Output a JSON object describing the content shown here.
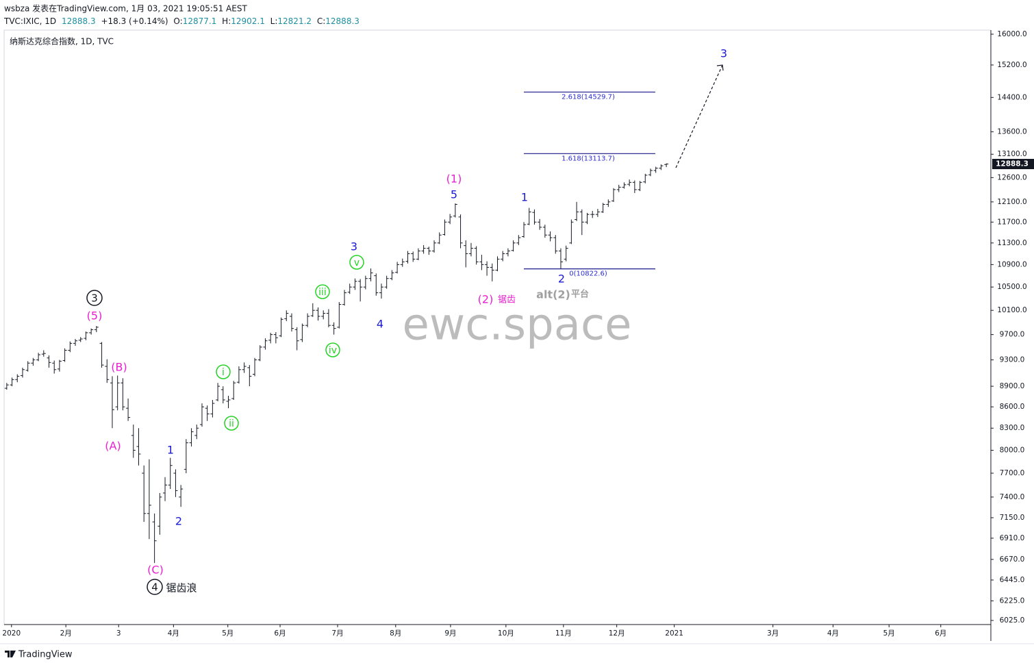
{
  "header": {
    "author_line": "wsbza 发表在TradingView.com, 1月 03, 2021 19:05:51 AEST"
  },
  "legend": {
    "symbol": "TVC:IXIC, 1D",
    "change": "+18.3 (+0.14%)",
    "open_label": "O:",
    "high_label": "H:",
    "low_label": "L:",
    "close_label": "C:"
  },
  "chart_data": {
    "type": "ohlc",
    "title": "纳斯达克综合指数, 1D, TVC",
    "color": "#131722",
    "log": true,
    "grid": false,
    "xlim": [
      -0.5,
      186.5
    ],
    "xticks": [
      {
        "value": 0.9,
        "label": "2020"
      },
      {
        "value": 11.2,
        "label": "2月"
      },
      {
        "value": 21.2,
        "label": "3"
      },
      {
        "value": 31.6,
        "label": "4月"
      },
      {
        "value": 41.9,
        "label": "5月"
      },
      {
        "value": 51.8,
        "label": "6月"
      },
      {
        "value": 62.7,
        "label": "7月"
      },
      {
        "value": 73.7,
        "label": "8月"
      },
      {
        "value": 84.1,
        "label": "9月"
      },
      {
        "value": 94.6,
        "label": "10月"
      },
      {
        "value": 105.5,
        "label": "11月"
      },
      {
        "value": 115.6,
        "label": "12月"
      },
      {
        "value": 126.5,
        "label": "2021"
      },
      {
        "value": 145.2,
        "label": "3月"
      },
      {
        "value": 156.6,
        "label": "4月"
      },
      {
        "value": 167.2,
        "label": "5月"
      },
      {
        "value": 177.0,
        "label": "6月"
      }
    ],
    "ylim": [
      5984,
      16109
    ],
    "yticks": [
      {
        "value": 16000,
        "label": "16000.0"
      },
      {
        "value": 15200,
        "label": "15200.0"
      },
      {
        "value": 14400,
        "label": "14400.0"
      },
      {
        "value": 13600,
        "label": "13600.0"
      },
      {
        "value": 13100,
        "label": "13100.0"
      },
      {
        "value": 12600,
        "label": "12600.0"
      },
      {
        "value": 12100,
        "label": "12100.0"
      },
      {
        "value": 11700,
        "label": "11700.0"
      },
      {
        "value": 11300,
        "label": "11300.0"
      },
      {
        "value": 10900,
        "label": "10900.0"
      },
      {
        "value": 10500,
        "label": "10500.0"
      },
      {
        "value": 10100,
        "label": "10100.0"
      },
      {
        "value": 9700,
        "label": "9700.0"
      },
      {
        "value": 9300,
        "label": "9300.0"
      },
      {
        "value": 8900,
        "label": "8900.0"
      },
      {
        "value": 8600,
        "label": "8600.0"
      },
      {
        "value": 8300,
        "label": "8300.0"
      },
      {
        "value": 8000,
        "label": "8000.0"
      },
      {
        "value": 7700,
        "label": "7700.0"
      },
      {
        "value": 7400,
        "label": "7400.0"
      },
      {
        "value": 7150,
        "label": "7150.0"
      },
      {
        "value": 6910,
        "label": "6910.0"
      },
      {
        "value": 6670,
        "label": "6670.0"
      },
      {
        "value": 6445,
        "label": "6445.0"
      },
      {
        "value": 6225,
        "label": "6225.0"
      },
      {
        "value": 6025,
        "label": "6025.0"
      }
    ],
    "fib_levels": [
      {
        "value": 14529.7,
        "label": "2.618(14529.7)"
      },
      {
        "value": 13113.7,
        "label": "1.618(13113.7)"
      },
      {
        "value": 10822.6,
        "label": "0(10822.6)"
      }
    ],
    "annotations": [
      {
        "text": "(1)",
        "color": "#e91fd0"
      },
      {
        "text": "5",
        "color": "#1a1ad6"
      },
      {
        "text": "1",
        "color": "#1a1ad6"
      },
      {
        "text": "3",
        "color": "#1a1ad6"
      },
      {
        "text": "v",
        "color": "#23d323",
        "circle": true
      },
      {
        "text": "iii",
        "color": "#23d323",
        "circle": true
      },
      {
        "text": "iv",
        "color": "#23d323",
        "circle": true
      },
      {
        "text": "4",
        "color": "#1a1ad6"
      },
      {
        "text": "i",
        "color": "#23d323",
        "circle": true
      },
      {
        "text": "ii",
        "color": "#23d323",
        "circle": true
      },
      {
        "text": "1",
        "color": "#1a1ad6"
      },
      {
        "text": "2",
        "color": "#1a1ad6"
      },
      {
        "text": "(C)",
        "color": "#e91fd0"
      },
      {
        "text": "4",
        "color": "#131722",
        "circle": true
      },
      {
        "text": "锯齿浪",
        "color": "#131722"
      },
      {
        "text": "3",
        "color": "#131722",
        "circle": true
      },
      {
        "text": "(5)",
        "color": "#e91fd0"
      },
      {
        "text": "(B)",
        "color": "#e91fd0"
      },
      {
        "text": "(A)",
        "color": "#e91fd0"
      },
      {
        "text": "(2)",
        "color": "#e91fd0"
      },
      {
        "text": "锯齿",
        "color": "#e91fd0"
      },
      {
        "text": "2",
        "color": "#1a1ad6"
      },
      {
        "text": "alt(2)",
        "color": "#a0a0a0"
      },
      {
        "text": "平台",
        "color": "#a0a0a0"
      },
      {
        "text": "3",
        "color": "#1a1ad6"
      }
    ],
    "ohlc": [
      [
        8870,
        8950,
        8850,
        8920
      ],
      [
        8920,
        9030,
        8900,
        9000
      ],
      [
        9000,
        9080,
        8960,
        9050
      ],
      [
        9060,
        9180,
        9030,
        9150
      ],
      [
        9140,
        9280,
        9120,
        9250
      ],
      [
        9250,
        9330,
        9210,
        9300
      ],
      [
        9300,
        9410,
        9280,
        9380
      ],
      [
        9390,
        9450,
        9350,
        9400
      ],
      [
        9330,
        9370,
        9180,
        9260
      ],
      [
        9250,
        9290,
        9090,
        9150
      ],
      [
        9160,
        9300,
        9120,
        9280
      ],
      [
        9290,
        9480,
        9270,
        9450
      ],
      [
        9450,
        9590,
        9420,
        9560
      ],
      [
        9560,
        9630,
        9520,
        9600
      ],
      [
        9610,
        9660,
        9580,
        9630
      ],
      [
        9640,
        9750,
        9610,
        9730
      ],
      [
        9730,
        9800,
        9700,
        9780
      ],
      [
        9780,
        9840,
        9740,
        9820
      ],
      [
        9560,
        9580,
        9180,
        9220
      ],
      [
        9200,
        9310,
        8950,
        9000
      ],
      [
        8950,
        9050,
        8300,
        8560
      ],
      [
        8600,
        9060,
        8550,
        8950
      ],
      [
        8950,
        9020,
        8550,
        8600
      ],
      [
        8580,
        8720,
        8400,
        8450
      ],
      [
        8200,
        8350,
        7900,
        8000
      ],
      [
        8050,
        8300,
        7800,
        7950
      ],
      [
        7700,
        7800,
        7100,
        7200
      ],
      [
        7200,
        7880,
        6900,
        7300
      ],
      [
        7100,
        7200,
        6630,
        6880
      ],
      [
        7050,
        7450,
        6950,
        7400
      ],
      [
        7450,
        7650,
        7350,
        7550
      ],
      [
        7550,
        7900,
        7500,
        7800
      ],
      [
        7700,
        7750,
        7400,
        7480
      ],
      [
        7400,
        7550,
        7280,
        7500
      ],
      [
        7750,
        8150,
        7700,
        8100
      ],
      [
        8100,
        8300,
        8050,
        8250
      ],
      [
        8200,
        8350,
        8150,
        8300
      ],
      [
        8350,
        8650,
        8320,
        8600
      ],
      [
        8580,
        8620,
        8400,
        8500
      ],
      [
        8500,
        8700,
        8450,
        8650
      ],
      [
        8700,
        8950,
        8680,
        8900
      ],
      [
        8850,
        8900,
        8650,
        8700
      ],
      [
        8680,
        8760,
        8580,
        8700
      ],
      [
        8720,
        8980,
        8700,
        8950
      ],
      [
        8960,
        9200,
        8940,
        9150
      ],
      [
        9150,
        9260,
        9100,
        9200
      ],
      [
        9180,
        9220,
        8900,
        9050
      ],
      [
        9080,
        9330,
        9050,
        9300
      ],
      [
        9300,
        9530,
        9280,
        9500
      ],
      [
        9500,
        9640,
        9460,
        9600
      ],
      [
        9610,
        9730,
        9560,
        9700
      ],
      [
        9700,
        9740,
        9560,
        9650
      ],
      [
        9680,
        9980,
        9660,
        9950
      ],
      [
        9960,
        10100,
        9920,
        10050
      ],
      [
        10000,
        10050,
        9750,
        9800
      ],
      [
        9780,
        9820,
        9450,
        9600
      ],
      [
        9620,
        9880,
        9580,
        9850
      ],
      [
        9850,
        10050,
        9820,
        10000
      ],
      [
        10010,
        10220,
        9990,
        10100
      ],
      [
        10100,
        10150,
        9930,
        10000
      ],
      [
        10000,
        10100,
        9950,
        10050
      ],
      [
        10050,
        10120,
        9820,
        9850
      ],
      [
        9850,
        9900,
        9700,
        9800
      ],
      [
        9820,
        10240,
        9800,
        10200
      ],
      [
        10200,
        10450,
        10180,
        10400
      ],
      [
        10410,
        10560,
        10380,
        10500
      ],
      [
        10500,
        10650,
        10450,
        10600
      ],
      [
        10600,
        10640,
        10250,
        10500
      ],
      [
        10500,
        10700,
        10460,
        10650
      ],
      [
        10650,
        10830,
        10600,
        10750
      ],
      [
        10700,
        10740,
        10350,
        10400
      ],
      [
        10400,
        10560,
        10300,
        10500
      ],
      [
        10500,
        10700,
        10470,
        10650
      ],
      [
        10650,
        10800,
        10620,
        10750
      ],
      [
        10760,
        10950,
        10740,
        10900
      ],
      [
        10900,
        11010,
        10860,
        10950
      ],
      [
        10960,
        11150,
        10920,
        11100
      ],
      [
        11100,
        11140,
        10950,
        11000
      ],
      [
        11000,
        11200,
        10980,
        11150
      ],
      [
        11150,
        11260,
        11100,
        11200
      ],
      [
        11200,
        11230,
        11080,
        11150
      ],
      [
        11150,
        11350,
        11120,
        11300
      ],
      [
        11300,
        11500,
        11280,
        11450
      ],
      [
        11460,
        11750,
        11440,
        11700
      ],
      [
        11700,
        11860,
        11660,
        11800
      ],
      [
        11820,
        12070,
        11790,
        12050
      ],
      [
        11800,
        11850,
        11200,
        11300
      ],
      [
        11250,
        11350,
        10850,
        11100
      ],
      [
        11100,
        11300,
        11050,
        11200
      ],
      [
        11200,
        11240,
        10900,
        10950
      ],
      [
        10950,
        11080,
        10800,
        10900
      ],
      [
        10900,
        10960,
        10700,
        10850
      ],
      [
        10850,
        10920,
        10600,
        10800
      ],
      [
        10800,
        11050,
        10780,
        11000
      ],
      [
        11000,
        11150,
        10960,
        11100
      ],
      [
        11100,
        11200,
        11050,
        11150
      ],
      [
        11160,
        11350,
        11140,
        11300
      ],
      [
        11300,
        11450,
        11260,
        11400
      ],
      [
        11420,
        11700,
        11400,
        11650
      ],
      [
        11660,
        11980,
        11640,
        11900
      ],
      [
        11890,
        11950,
        11650,
        11700
      ],
      [
        11700,
        11760,
        11550,
        11600
      ],
      [
        11600,
        11650,
        11400,
        11450
      ],
      [
        11450,
        11520,
        11330,
        11400
      ],
      [
        11400,
        11450,
        11100,
        11150
      ],
      [
        11150,
        11200,
        10820,
        10950
      ],
      [
        11000,
        11250,
        10960,
        11200
      ],
      [
        11300,
        11750,
        11280,
        11700
      ],
      [
        11750,
        12100,
        11720,
        11900
      ],
      [
        11900,
        11950,
        11450,
        11700
      ],
      [
        11700,
        11880,
        11660,
        11850
      ],
      [
        11850,
        11920,
        11780,
        11850
      ],
      [
        11850,
        11960,
        11800,
        11900
      ],
      [
        11900,
        12080,
        11880,
        12050
      ],
      [
        12050,
        12150,
        12000,
        12100
      ],
      [
        12120,
        12380,
        12100,
        12350
      ],
      [
        12350,
        12450,
        12300,
        12400
      ],
      [
        12400,
        12500,
        12370,
        12450
      ],
      [
        12460,
        12560,
        12420,
        12500
      ],
      [
        12500,
        12540,
        12280,
        12350
      ],
      [
        12350,
        12530,
        12320,
        12500
      ],
      [
        12510,
        12680,
        12480,
        12650
      ],
      [
        12660,
        12790,
        12630,
        12750
      ],
      [
        12750,
        12830,
        12700,
        12800
      ],
      [
        12800,
        12880,
        12760,
        12850
      ],
      [
        12877.1,
        12902.1,
        12821.2,
        12888.3
      ]
    ]
  },
  "watermark": "ewc.space",
  "footer": {
    "brand": "TradingView"
  }
}
